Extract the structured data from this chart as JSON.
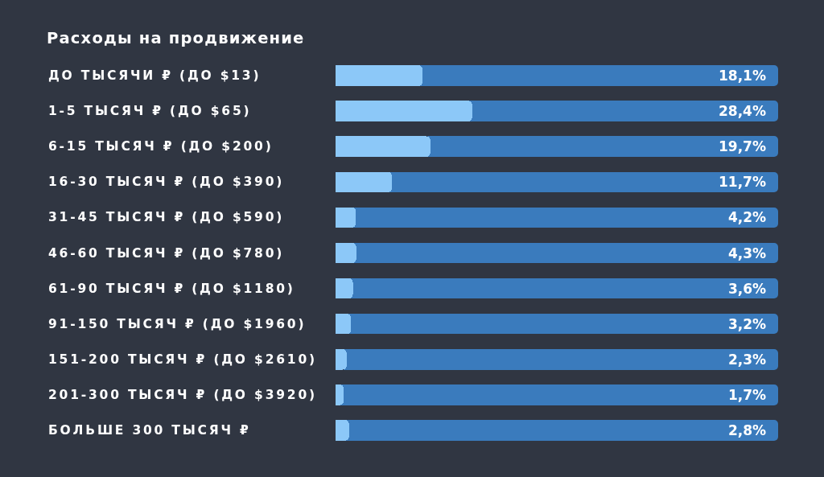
{
  "chart_data": {
    "type": "bar",
    "orientation": "horizontal",
    "title": "Расходы на продвижение",
    "categories": [
      "ДО ТЫСЯЧИ ₽ (ДО $13)",
      "1-5 ТЫСЯЧ ₽ (ДО $65)",
      "6-15 ТЫСЯЧ ₽ (ДО $200)",
      "16-30 ТЫСЯЧ ₽ (ДО $390)",
      "31-45 ТЫСЯЧ ₽ (ДО $590)",
      "46-60 ТЫСЯЧ ₽ (ДО $780)",
      "61-90 ТЫСЯЧ ₽ (ДО $1180)",
      "91-150 ТЫСЯЧ ₽ (ДО $1960)",
      "151-200 ТЫСЯЧ ₽ (ДО $2610)",
      "201-300 ТЫСЯЧ ₽ (ДО $3920)",
      "БОЛЬШЕ 300 ТЫСЯЧ ₽"
    ],
    "values": [
      18.1,
      28.4,
      19.7,
      11.7,
      4.2,
      4.3,
      3.6,
      3.2,
      2.3,
      1.7,
      2.8
    ],
    "value_labels": [
      "18,1%",
      "28,4%",
      "19,7%",
      "11,7%",
      "4,2%",
      "4,3%",
      "3,6%",
      "3,2%",
      "2,3%",
      "1,7%",
      "2,8%"
    ],
    "color": "#8cc8f8",
    "xlim": [
      0,
      92
    ]
  }
}
